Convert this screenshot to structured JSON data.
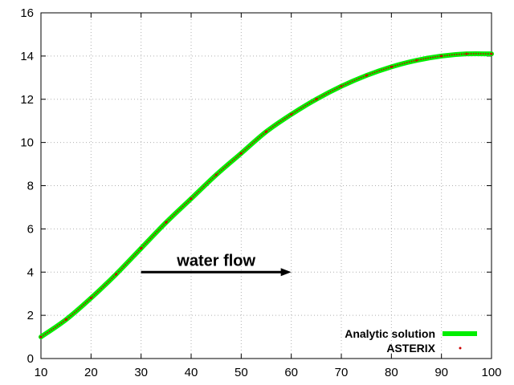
{
  "chart_data": {
    "type": "line",
    "title": "",
    "xlabel": "",
    "ylabel": "",
    "xlim": [
      10,
      100
    ],
    "ylim": [
      0,
      16
    ],
    "x_ticks": [
      10,
      20,
      30,
      40,
      50,
      60,
      70,
      80,
      90,
      100
    ],
    "y_ticks": [
      0,
      2,
      4,
      6,
      8,
      10,
      12,
      14,
      16
    ],
    "grid": true,
    "legend_position": "bottom-right",
    "series": [
      {
        "name": "Analytic solution",
        "style": "line",
        "color": "#00ee00",
        "x": [
          10,
          15,
          20,
          25,
          30,
          35,
          40,
          45,
          50,
          55,
          60,
          65,
          70,
          75,
          80,
          85,
          90,
          95,
          100
        ],
        "y": [
          1.0,
          1.8,
          2.8,
          3.9,
          5.1,
          6.3,
          7.4,
          8.5,
          9.5,
          10.5,
          11.3,
          12.0,
          12.6,
          13.1,
          13.5,
          13.8,
          14.0,
          14.1,
          14.1
        ]
      },
      {
        "name": "ASTERIX",
        "style": "points",
        "color": "#cc0000",
        "x": [
          10,
          15,
          20,
          25,
          30,
          35,
          40,
          45,
          50,
          55,
          60,
          65,
          70,
          75,
          80,
          85,
          90,
          95,
          100
        ],
        "y": [
          1.0,
          1.8,
          2.8,
          3.9,
          5.1,
          6.3,
          7.4,
          8.5,
          9.5,
          10.5,
          11.3,
          12.0,
          12.6,
          13.1,
          13.5,
          13.8,
          14.0,
          14.1,
          14.1
        ]
      }
    ],
    "annotations": [
      {
        "text": "water flow",
        "arrow_from": [
          30,
          4
        ],
        "arrow_to": [
          60,
          4
        ]
      }
    ]
  }
}
